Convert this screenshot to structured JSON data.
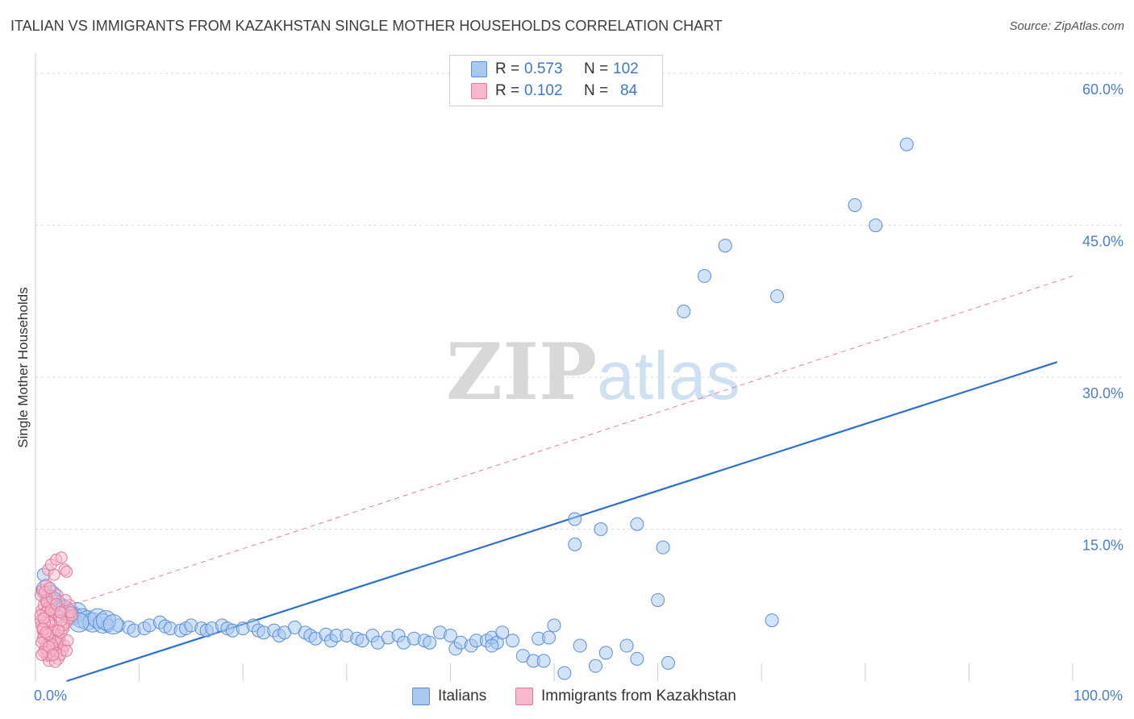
{
  "title": "ITALIAN VS IMMIGRANTS FROM KAZAKHSTAN SINGLE MOTHER HOUSEHOLDS CORRELATION CHART",
  "source": "Source: ZipAtlas.com",
  "watermark": {
    "zip": "ZIP",
    "atlas": "atlas"
  },
  "legend": {
    "rows": [
      {
        "r_label": "R =",
        "r_value": "0.573",
        "n_label": "N =",
        "n_value": "102",
        "color": "#a8c8f0",
        "border": "#5b8fd6"
      },
      {
        "r_label": "R =",
        "r_value": "0.102",
        "n_label": "N =",
        "n_value": "84",
        "color": "#f7b8cb",
        "border": "#e07a9a"
      }
    ]
  },
  "bottom_legend": [
    {
      "label": "Italians",
      "color": "#a8c8f0",
      "border": "#5b8fd6"
    },
    {
      "label": "Immigrants from Kazakhstan",
      "color": "#f7b8cb",
      "border": "#e07a9a"
    }
  ],
  "chart_data": {
    "type": "scatter",
    "title": "ITALIAN VS IMMIGRANTS FROM KAZAKHSTAN SINGLE MOTHER HOUSEHOLDS CORRELATION CHART",
    "xlabel": "",
    "ylabel": "Single Mother Households",
    "xlim": [
      0,
      100
    ],
    "ylim": [
      0,
      62
    ],
    "x_tick_labels": [
      {
        "value": 0,
        "label": "0.0%"
      },
      {
        "value": 100,
        "label": "100.0%"
      }
    ],
    "y_tick_labels": [
      {
        "value": 15,
        "label": "15.0%"
      },
      {
        "value": 30,
        "label": "30.0%"
      },
      {
        "value": 45,
        "label": "45.0%"
      },
      {
        "value": 60,
        "label": "60.0%"
      }
    ],
    "grid": true,
    "series": [
      {
        "name": "Italians",
        "color": "#5b8fd6",
        "fill": "#a8c8f0",
        "trend": {
          "x": [
            3,
            98.5
          ],
          "y": [
            0,
            31.5
          ],
          "style": "solid"
        },
        "points": [
          [
            0.8,
            10.5
          ],
          [
            1.0,
            9.0
          ],
          [
            1.5,
            8.5
          ],
          [
            1.8,
            7.8
          ],
          [
            2.5,
            7.2
          ],
          [
            3.0,
            6.8
          ],
          [
            3.5,
            6.5
          ],
          [
            4.0,
            6.8
          ],
          [
            4.5,
            6.2
          ],
          [
            5.0,
            6.0
          ],
          [
            5.5,
            5.8
          ],
          [
            6.0,
            6.2
          ],
          [
            6.5,
            5.7
          ],
          [
            7.0,
            5.5
          ],
          [
            8.0,
            5.5
          ],
          [
            9.0,
            5.3
          ],
          [
            9.5,
            5.0
          ],
          [
            10.5,
            5.2
          ],
          [
            11.0,
            5.5
          ],
          [
            12.0,
            5.8
          ],
          [
            12.5,
            5.4
          ],
          [
            13.0,
            5.2
          ],
          [
            14.0,
            5.0
          ],
          [
            14.5,
            5.2
          ],
          [
            15.0,
            5.5
          ],
          [
            16.0,
            5.2
          ],
          [
            16.5,
            5.0
          ],
          [
            17.0,
            5.2
          ],
          [
            18.0,
            5.5
          ],
          [
            18.5,
            5.2
          ],
          [
            19.0,
            5.0
          ],
          [
            20.0,
            5.2
          ],
          [
            21.0,
            5.5
          ],
          [
            21.5,
            5.0
          ],
          [
            22.0,
            4.8
          ],
          [
            23.0,
            5.0
          ],
          [
            23.5,
            4.5
          ],
          [
            24.0,
            4.8
          ],
          [
            25.0,
            5.3
          ],
          [
            26.0,
            4.8
          ],
          [
            26.5,
            4.5
          ],
          [
            27.0,
            4.2
          ],
          [
            28.0,
            4.6
          ],
          [
            28.5,
            4.0
          ],
          [
            29.0,
            4.5
          ],
          [
            30.0,
            4.5
          ],
          [
            31.0,
            4.2
          ],
          [
            31.5,
            4.0
          ],
          [
            32.5,
            4.5
          ],
          [
            33.0,
            3.8
          ],
          [
            34.0,
            4.3
          ],
          [
            35.0,
            4.5
          ],
          [
            35.5,
            3.8
          ],
          [
            36.5,
            4.2
          ],
          [
            37.5,
            4.0
          ],
          [
            38.0,
            3.8
          ],
          [
            39.0,
            4.8
          ],
          [
            40.0,
            4.5
          ],
          [
            40.5,
            3.2
          ],
          [
            41.0,
            3.8
          ],
          [
            42.0,
            3.5
          ],
          [
            42.5,
            4.0
          ],
          [
            43.5,
            4.0
          ],
          [
            44.0,
            4.3
          ],
          [
            44.5,
            3.8
          ],
          [
            45.0,
            4.8
          ],
          [
            46.0,
            4.0
          ],
          [
            44.0,
            3.5
          ],
          [
            47.0,
            2.5
          ],
          [
            48.0,
            2.0
          ],
          [
            48.5,
            4.2
          ],
          [
            49.5,
            4.3
          ],
          [
            50.0,
            5.5
          ],
          [
            49.0,
            2.0
          ],
          [
            51.0,
            0.8
          ],
          [
            52.5,
            3.5
          ],
          [
            54.0,
            1.5
          ],
          [
            55.0,
            2.8
          ],
          [
            57.0,
            3.5
          ],
          [
            58.0,
            2.2
          ],
          [
            61.0,
            1.8
          ],
          [
            71.0,
            6.0
          ],
          [
            60.0,
            8.0
          ],
          [
            52.0,
            13.5
          ],
          [
            52.0,
            16.0
          ],
          [
            54.5,
            15.0
          ],
          [
            58.0,
            15.5
          ],
          [
            60.5,
            13.2
          ],
          [
            62.5,
            36.5
          ],
          [
            64.5,
            40.0
          ],
          [
            66.5,
            43.0
          ],
          [
            71.5,
            38.0
          ],
          [
            79.0,
            47.0
          ],
          [
            81.0,
            45.0
          ],
          [
            84.0,
            53.0
          ],
          [
            1.5,
            8.0
          ],
          [
            2.0,
            7.5
          ],
          [
            3.2,
            6.6
          ],
          [
            4.2,
            5.8
          ],
          [
            6.8,
            6.0
          ],
          [
            7.5,
            5.6
          ],
          [
            2.8,
            7.0
          ]
        ]
      },
      {
        "name": "Immigrants from Kazakhstan",
        "color": "#e07a9a",
        "fill": "#f7b8cb",
        "trend": {
          "x": [
            0.5,
            100
          ],
          "y": [
            6.5,
            40.0
          ],
          "style": "dashed"
        },
        "points": [
          [
            0.5,
            6.0
          ],
          [
            0.6,
            5.5
          ],
          [
            0.7,
            5.0
          ],
          [
            0.8,
            4.5
          ],
          [
            0.9,
            4.0
          ],
          [
            1.0,
            3.5
          ],
          [
            1.1,
            3.0
          ],
          [
            1.2,
            2.8
          ],
          [
            0.6,
            7.0
          ],
          [
            0.8,
            7.5
          ],
          [
            1.0,
            8.0
          ],
          [
            1.2,
            7.2
          ],
          [
            1.4,
            6.5
          ],
          [
            1.5,
            6.0
          ],
          [
            1.6,
            5.5
          ],
          [
            1.8,
            5.0
          ],
          [
            2.0,
            4.5
          ],
          [
            2.2,
            4.0
          ],
          [
            2.4,
            3.5
          ],
          [
            2.6,
            3.0
          ],
          [
            1.0,
            6.8
          ],
          [
            1.3,
            5.8
          ],
          [
            1.7,
            4.8
          ],
          [
            2.1,
            3.8
          ],
          [
            0.7,
            4.2
          ],
          [
            0.9,
            3.2
          ],
          [
            1.1,
            2.5
          ],
          [
            1.3,
            2.0
          ],
          [
            1.5,
            2.5
          ],
          [
            1.7,
            3.2
          ],
          [
            1.9,
            3.8
          ],
          [
            2.3,
            4.2
          ],
          [
            2.5,
            4.8
          ],
          [
            2.7,
            5.2
          ],
          [
            3.0,
            5.8
          ],
          [
            3.2,
            6.2
          ],
          [
            3.5,
            6.5
          ],
          [
            0.5,
            8.5
          ],
          [
            0.7,
            9.0
          ],
          [
            1.0,
            9.5
          ],
          [
            1.2,
            11.0
          ],
          [
            1.5,
            11.5
          ],
          [
            1.8,
            10.5
          ],
          [
            2.0,
            12.0
          ],
          [
            2.5,
            12.2
          ],
          [
            2.8,
            11.0
          ],
          [
            3.0,
            10.8
          ],
          [
            0.9,
            5.8
          ],
          [
            1.4,
            4.2
          ],
          [
            1.6,
            3.6
          ],
          [
            2.0,
            2.8
          ],
          [
            2.2,
            2.2
          ],
          [
            2.4,
            2.6
          ],
          [
            1.8,
            6.8
          ],
          [
            2.6,
            7.0
          ],
          [
            3.3,
            7.5
          ],
          [
            0.6,
            3.8
          ],
          [
            0.8,
            2.9
          ],
          [
            1.9,
            1.9
          ],
          [
            2.8,
            3.5
          ],
          [
            3.1,
            4.0
          ],
          [
            0.5,
            6.5
          ],
          [
            0.8,
            6.2
          ],
          [
            1.1,
            7.8
          ],
          [
            1.6,
            8.2
          ],
          [
            2.1,
            8.5
          ],
          [
            2.9,
            8.0
          ],
          [
            0.7,
            5.2
          ],
          [
            1.2,
            4.6
          ],
          [
            1.5,
            7.0
          ],
          [
            2.3,
            6.4
          ],
          [
            2.7,
            5.5
          ],
          [
            3.4,
            6.8
          ],
          [
            0.6,
            2.6
          ],
          [
            1.0,
            4.8
          ],
          [
            1.3,
            3.4
          ],
          [
            1.7,
            2.6
          ],
          [
            2.2,
            5.0
          ],
          [
            2.5,
            6.0
          ],
          [
            3.0,
            3.0
          ],
          [
            0.9,
            8.8
          ],
          [
            1.4,
            9.2
          ],
          [
            2.0,
            7.6
          ],
          [
            2.4,
            6.8
          ]
        ]
      }
    ]
  }
}
